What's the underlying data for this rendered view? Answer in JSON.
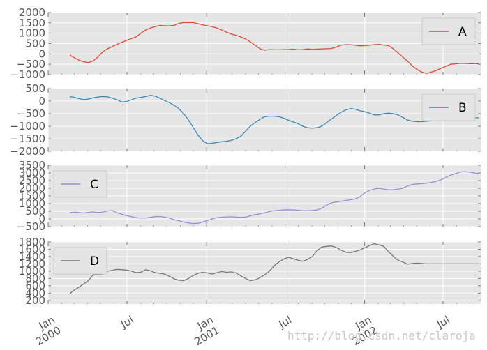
{
  "watermark": "http://blog.csdn.net/claroja",
  "chart_data": {
    "type": "line",
    "style": "ggplot",
    "grid": true,
    "shared_x": true,
    "x_ticks": [
      {
        "date": "2000-01-01",
        "label": "Jan\n2000",
        "major": true
      },
      {
        "date": "2000-07-01",
        "label": "Jul",
        "major": false
      },
      {
        "date": "2001-01-01",
        "label": "Jan\n2001",
        "major": true
      },
      {
        "date": "2001-07-01",
        "label": "Jul",
        "major": false
      },
      {
        "date": "2002-01-01",
        "label": "Jan\n2002",
        "major": true
      },
      {
        "date": "2002-07-01",
        "label": "Jul",
        "major": false
      }
    ],
    "xlim": [
      "2000-01-01",
      "2002-09-26"
    ],
    "panels": [
      {
        "legend_placement": "upper right",
        "ylim": [
          -1000,
          2000
        ],
        "yticks": [
          -1000,
          -500,
          0,
          500,
          1000,
          1500,
          2000
        ],
        "ytick_labels": [
          "−1000",
          "−500",
          "0",
          "500",
          "1000",
          "1500",
          "2000"
        ],
        "series": [
          {
            "name": "A",
            "color": "#e24a33",
            "x": [
              "2000-02-20",
              "2000-03-01",
              "2000-03-12",
              "2000-03-23",
              "2000-04-03",
              "2000-04-14",
              "2000-04-25",
              "2000-05-06",
              "2000-05-17",
              "2000-05-28",
              "2000-06-08",
              "2000-06-19",
              "2000-06-30",
              "2000-07-11",
              "2000-07-22",
              "2000-08-02",
              "2000-08-13",
              "2000-08-24",
              "2000-09-04",
              "2000-09-15",
              "2000-09-26",
              "2000-10-07",
              "2000-10-18",
              "2000-10-29",
              "2000-11-09",
              "2000-11-20",
              "2000-12-01",
              "2000-12-12",
              "2000-12-23",
              "2001-01-03",
              "2001-01-14",
              "2001-01-25",
              "2001-02-05",
              "2001-02-16",
              "2001-02-27",
              "2001-03-10",
              "2001-03-21",
              "2001-04-01",
              "2001-04-12",
              "2001-04-23",
              "2001-05-04",
              "2001-05-15",
              "2001-05-26",
              "2001-06-06",
              "2001-06-17",
              "2001-06-28",
              "2001-07-09",
              "2001-07-20",
              "2001-07-31",
              "2001-08-11",
              "2001-08-22",
              "2001-09-02",
              "2001-09-13",
              "2001-09-24",
              "2001-10-05",
              "2001-10-16",
              "2001-10-27",
              "2001-11-07",
              "2001-11-18",
              "2001-11-29",
              "2001-12-10",
              "2001-12-21",
              "2002-01-01",
              "2002-01-12",
              "2002-01-23",
              "2002-02-03",
              "2002-02-14",
              "2002-02-25",
              "2002-03-08",
              "2002-03-19",
              "2002-03-30",
              "2002-04-10",
              "2002-04-21",
              "2002-05-02",
              "2002-05-13",
              "2002-05-24",
              "2002-06-04",
              "2002-06-15",
              "2002-06-26",
              "2002-07-07",
              "2002-07-18",
              "2002-07-29",
              "2002-08-09",
              "2002-08-20",
              "2002-08-31",
              "2002-09-11",
              "2002-09-22"
            ],
            "y": [
              -50,
              -180,
              -300,
              -380,
              -420,
              -340,
              -150,
              100,
              250,
              350,
              460,
              560,
              650,
              740,
              820,
              1000,
              1150,
              1250,
              1320,
              1380,
              1360,
              1360,
              1380,
              1480,
              1510,
              1510,
              1520,
              1460,
              1400,
              1360,
              1320,
              1250,
              1150,
              1050,
              960,
              900,
              820,
              720,
              580,
              420,
              250,
              180,
              210,
              200,
              200,
              210,
              215,
              230,
              200,
              210,
              240,
              220,
              230,
              240,
              250,
              260,
              330,
              420,
              450,
              440,
              420,
              390,
              400,
              420,
              450,
              460,
              430,
              400,
              250,
              50,
              -150,
              -350,
              -580,
              -750,
              -880,
              -940,
              -880,
              -800,
              -700,
              -600,
              -500,
              -480,
              -460,
              -460,
              -470,
              -470,
              -470
            ]
          }
        ]
      },
      {
        "legend_placement": "upper right",
        "ylim": [
          -2000,
          500
        ],
        "yticks": [
          -2000,
          -1500,
          -1000,
          -500,
          0,
          500
        ],
        "ytick_labels": [
          "−2000",
          "−1500",
          "−1000",
          "−500",
          "0",
          "500"
        ],
        "series": [
          {
            "name": "B",
            "color": "#348abd",
            "x": [
              "2000-02-20",
              "2000-03-01",
              "2000-03-12",
              "2000-03-23",
              "2000-04-03",
              "2000-04-14",
              "2000-04-25",
              "2000-05-06",
              "2000-05-17",
              "2000-05-28",
              "2000-06-08",
              "2000-06-19",
              "2000-06-30",
              "2000-07-11",
              "2000-07-22",
              "2000-08-02",
              "2000-08-13",
              "2000-08-24",
              "2000-09-04",
              "2000-09-15",
              "2000-09-26",
              "2000-10-07",
              "2000-10-18",
              "2000-10-29",
              "2000-11-09",
              "2000-11-20",
              "2000-12-01",
              "2000-12-12",
              "2000-12-23",
              "2001-01-03",
              "2001-01-14",
              "2001-01-25",
              "2001-02-05",
              "2001-02-16",
              "2001-02-27",
              "2001-03-10",
              "2001-03-21",
              "2001-04-01",
              "2001-04-12",
              "2001-04-23",
              "2001-05-04",
              "2001-05-15",
              "2001-05-26",
              "2001-06-06",
              "2001-06-17",
              "2001-06-28",
              "2001-07-09",
              "2001-07-20",
              "2001-07-31",
              "2001-08-11",
              "2001-08-22",
              "2001-09-02",
              "2001-09-13",
              "2001-09-24",
              "2001-10-05",
              "2001-10-16",
              "2001-10-27",
              "2001-11-07",
              "2001-11-18",
              "2001-11-29",
              "2001-12-10",
              "2001-12-21",
              "2002-01-01",
              "2002-01-12",
              "2002-01-23",
              "2002-02-03",
              "2002-02-14",
              "2002-02-25",
              "2002-03-08",
              "2002-03-19",
              "2002-03-30",
              "2002-04-10",
              "2002-04-21",
              "2002-05-02",
              "2002-05-13",
              "2002-05-24",
              "2002-06-04",
              "2002-06-15",
              "2002-06-26",
              "2002-07-07",
              "2002-07-18",
              "2002-07-29",
              "2002-08-09",
              "2002-08-20",
              "2002-08-31",
              "2002-09-11",
              "2002-09-22"
            ],
            "y": [
              180,
              150,
              100,
              60,
              80,
              130,
              160,
              180,
              170,
              120,
              50,
              -30,
              -20,
              50,
              120,
              150,
              180,
              230,
              200,
              120,
              20,
              -60,
              -170,
              -300,
              -500,
              -750,
              -1050,
              -1350,
              -1580,
              -1700,
              -1680,
              -1650,
              -1620,
              -1600,
              -1560,
              -1500,
              -1400,
              -1200,
              -1000,
              -850,
              -730,
              -620,
              -600,
              -600,
              -620,
              -680,
              -760,
              -830,
              -900,
              -1000,
              -1060,
              -1080,
              -1060,
              -1000,
              -850,
              -720,
              -580,
              -450,
              -350,
              -300,
              -320,
              -380,
              -420,
              -480,
              -550,
              -550,
              -500,
              -480,
              -500,
              -550,
              -650,
              -750,
              -800,
              -820,
              -820,
              -800,
              -780,
              -750,
              -720,
              -700,
              -700,
              -680,
              -660,
              -650,
              -650,
              -660,
              -670
            ]
          }
        ]
      },
      {
        "legend_placement": "upper left",
        "ylim": [
          -500,
          3500
        ],
        "yticks": [
          -500,
          0,
          500,
          1000,
          1500,
          2000,
          2500,
          3000,
          3500
        ],
        "ytick_labels": [
          "−500",
          "0",
          "500",
          "1000",
          "1500",
          "2000",
          "2500",
          "3000",
          "3500"
        ],
        "series": [
          {
            "name": "C",
            "color": "#988ed5",
            "x": [
              "2000-02-20",
              "2000-03-01",
              "2000-03-12",
              "2000-03-23",
              "2000-04-03",
              "2000-04-14",
              "2000-04-25",
              "2000-05-06",
              "2000-05-17",
              "2000-05-28",
              "2000-06-08",
              "2000-06-19",
              "2000-06-30",
              "2000-07-11",
              "2000-07-22",
              "2000-08-02",
              "2000-08-13",
              "2000-08-24",
              "2000-09-04",
              "2000-09-15",
              "2000-09-26",
              "2000-10-07",
              "2000-10-18",
              "2000-10-29",
              "2000-11-09",
              "2000-11-20",
              "2000-12-01",
              "2000-12-12",
              "2000-12-23",
              "2001-01-03",
              "2001-01-14",
              "2001-01-25",
              "2001-02-05",
              "2001-02-16",
              "2001-02-27",
              "2001-03-10",
              "2001-03-21",
              "2001-04-01",
              "2001-04-12",
              "2001-04-23",
              "2001-05-04",
              "2001-05-15",
              "2001-05-26",
              "2001-06-06",
              "2001-06-17",
              "2001-06-28",
              "2001-07-09",
              "2001-07-20",
              "2001-07-31",
              "2001-08-11",
              "2001-08-22",
              "2001-09-02",
              "2001-09-13",
              "2001-09-24",
              "2001-10-05",
              "2001-10-16",
              "2001-10-27",
              "2001-11-07",
              "2001-11-18",
              "2001-11-29",
              "2001-12-10",
              "2001-12-21",
              "2002-01-01",
              "2002-01-12",
              "2002-01-23",
              "2002-02-03",
              "2002-02-14",
              "2002-02-25",
              "2002-03-08",
              "2002-03-19",
              "2002-03-30",
              "2002-04-10",
              "2002-04-21",
              "2002-05-02",
              "2002-05-13",
              "2002-05-24",
              "2002-06-04",
              "2002-06-15",
              "2002-06-26",
              "2002-07-07",
              "2002-07-18",
              "2002-07-29",
              "2002-08-09",
              "2002-08-20",
              "2002-08-31",
              "2002-09-11",
              "2002-09-22"
            ],
            "y": [
              400,
              450,
              420,
              380,
              430,
              460,
              420,
              450,
              520,
              550,
              400,
              300,
              220,
              150,
              80,
              50,
              60,
              100,
              150,
              160,
              120,
              50,
              -50,
              -120,
              -200,
              -260,
              -300,
              -280,
              -200,
              -100,
              0,
              80,
              110,
              130,
              140,
              120,
              100,
              120,
              200,
              280,
              330,
              400,
              480,
              540,
              560,
              590,
              600,
              590,
              560,
              540,
              530,
              550,
              580,
              700,
              900,
              1050,
              1100,
              1150,
              1200,
              1250,
              1300,
              1450,
              1700,
              1850,
              1950,
              2000,
              1950,
              1900,
              1900,
              1950,
              2000,
              2150,
              2250,
              2280,
              2300,
              2330,
              2380,
              2450,
              2550,
              2700,
              2850,
              2950,
              3050,
              3080,
              3050,
              3000,
              2950
            ]
          }
        ]
      },
      {
        "legend_placement": "upper left",
        "ylim": [
          100,
          1800
        ],
        "yticks": [
          200,
          400,
          600,
          800,
          1000,
          1200,
          1400,
          1600,
          1800
        ],
        "ytick_labels": [
          "200",
          "400",
          "600",
          "800",
          "1000",
          "1200",
          "1400",
          "1600",
          "1800"
        ],
        "series": [
          {
            "name": "D",
            "color": "#777777",
            "x": [
              "2000-02-20",
              "2000-03-01",
              "2000-03-12",
              "2000-03-23",
              "2000-04-03",
              "2000-04-14",
              "2000-04-25",
              "2000-05-06",
              "2000-05-17",
              "2000-05-28",
              "2000-06-08",
              "2000-06-19",
              "2000-06-30",
              "2000-07-11",
              "2000-07-22",
              "2000-08-02",
              "2000-08-13",
              "2000-08-24",
              "2000-09-04",
              "2000-09-15",
              "2000-09-26",
              "2000-10-07",
              "2000-10-18",
              "2000-10-29",
              "2000-11-09",
              "2000-11-20",
              "2000-12-01",
              "2000-12-12",
              "2000-12-23",
              "2001-01-03",
              "2001-01-14",
              "2001-01-25",
              "2001-02-05",
              "2001-02-16",
              "2001-02-27",
              "2001-03-10",
              "2001-03-21",
              "2001-04-01",
              "2001-04-12",
              "2001-04-23",
              "2001-05-04",
              "2001-05-15",
              "2001-05-26",
              "2001-06-06",
              "2001-06-17",
              "2001-06-28",
              "2001-07-09",
              "2001-07-20",
              "2001-07-31",
              "2001-08-11",
              "2001-08-22",
              "2001-09-02",
              "2001-09-13",
              "2001-09-24",
              "2001-10-05",
              "2001-10-16",
              "2001-10-27",
              "2001-11-07",
              "2001-11-18",
              "2001-11-29",
              "2001-12-10",
              "2001-12-21",
              "2002-01-01",
              "2002-01-12",
              "2002-01-23",
              "2002-02-03",
              "2002-02-14",
              "2002-02-25",
              "2002-03-08",
              "2002-03-19",
              "2002-03-30",
              "2002-04-10",
              "2002-04-21",
              "2002-05-02",
              "2002-05-13",
              "2002-05-24",
              "2002-06-04",
              "2002-06-15",
              "2002-06-26",
              "2002-07-07",
              "2002-07-18",
              "2002-07-29",
              "2002-08-09",
              "2002-08-20",
              "2002-08-31",
              "2002-09-11",
              "2002-09-22"
            ],
            "y": [
              380,
              480,
              560,
              650,
              740,
              900,
              910,
              920,
              1000,
              1020,
              1050,
              1040,
              1030,
              1000,
              960,
              970,
              1040,
              1010,
              960,
              940,
              920,
              860,
              790,
              750,
              740,
              800,
              880,
              940,
              970,
              950,
              920,
              960,
              990,
              970,
              980,
              950,
              870,
              800,
              740,
              760,
              820,
              900,
              1000,
              1150,
              1250,
              1330,
              1380,
              1340,
              1300,
              1270,
              1320,
              1400,
              1560,
              1660,
              1680,
              1690,
              1650,
              1580,
              1520,
              1510,
              1540,
              1580,
              1640,
              1700,
              1750,
              1720,
              1680,
              1530,
              1410,
              1300,
              1250,
              1190,
              1210,
              1220,
              1210,
              1200,
              1200,
              1200,
              1200,
              1200,
              1200,
              1200,
              1200,
              1200,
              1200,
              1200,
              1200
            ]
          }
        ]
      }
    ]
  }
}
